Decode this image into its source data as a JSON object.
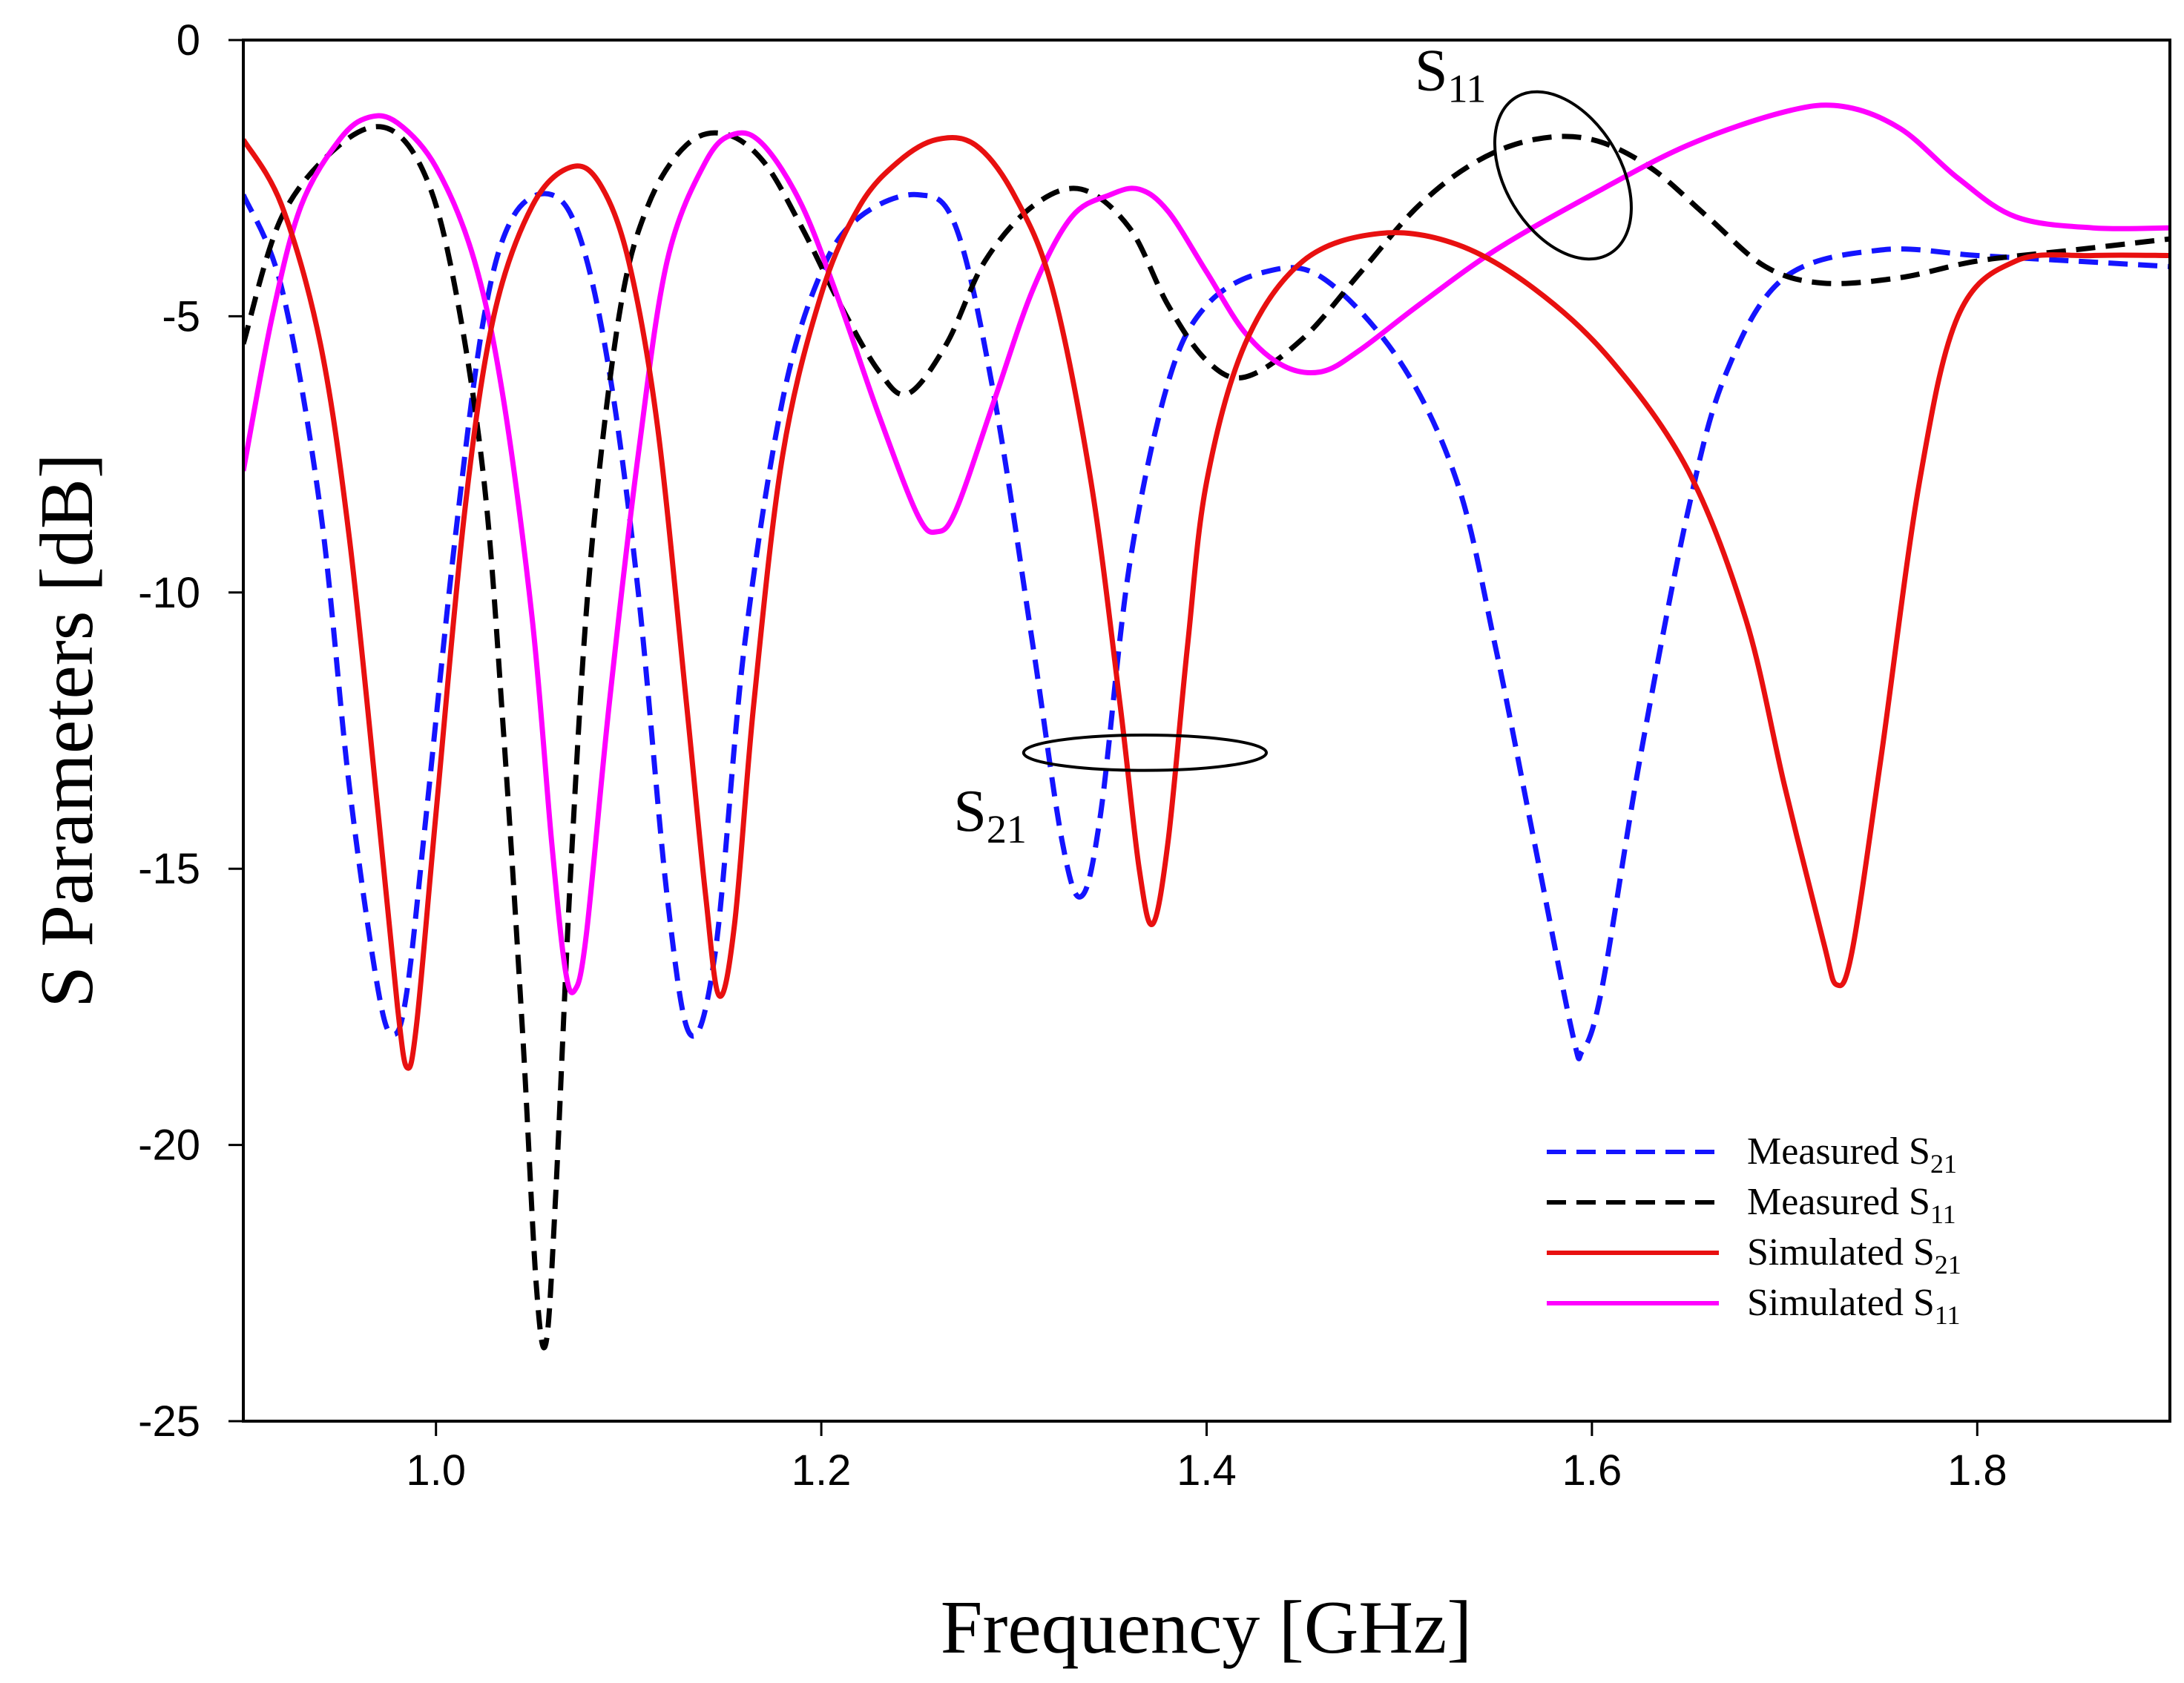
{
  "chart_data": {
    "type": "line",
    "xlabel": "Frequency [GHz]",
    "ylabel": "S Parameters [dB]",
    "xlim": [
      0.9,
      1.9
    ],
    "ylim": [
      -25,
      0
    ],
    "xticks": [
      "1.0",
      "1.2",
      "1.4",
      "1.6",
      "1.8"
    ],
    "xtick_values": [
      1.0,
      1.2,
      1.4,
      1.6,
      1.8
    ],
    "yticks": [
      "0",
      "-5",
      "-10",
      "-15",
      "-20",
      "-25"
    ],
    "ytick_values": [
      0,
      -5,
      -10,
      -15,
      -20,
      -25
    ],
    "grid": false,
    "legend_position": "bottom-right",
    "series": [
      {
        "name": "Measured S",
        "name_sub": "21",
        "color": "#1414ff",
        "style": "dashed",
        "points": [
          [
            0.9,
            -2.8
          ],
          [
            0.92,
            -4.5
          ],
          [
            0.94,
            -8.5
          ],
          [
            0.955,
            -13.5
          ],
          [
            0.97,
            -17.2
          ],
          [
            0.978,
            -18.0
          ],
          [
            0.985,
            -17.2
          ],
          [
            0.995,
            -14
          ],
          [
            1.01,
            -9
          ],
          [
            1.025,
            -5.0
          ],
          [
            1.04,
            -3.2
          ],
          [
            1.06,
            -2.8
          ],
          [
            1.075,
            -3.6
          ],
          [
            1.09,
            -6.0
          ],
          [
            1.105,
            -10
          ],
          [
            1.12,
            -15.5
          ],
          [
            1.132,
            -18.0
          ],
          [
            1.145,
            -16.5
          ],
          [
            1.16,
            -11
          ],
          [
            1.18,
            -6.5
          ],
          [
            1.2,
            -4.2
          ],
          [
            1.22,
            -3.2
          ],
          [
            1.25,
            -2.8
          ],
          [
            1.27,
            -3.4
          ],
          [
            1.29,
            -6.5
          ],
          [
            1.31,
            -11
          ],
          [
            1.325,
            -14.5
          ],
          [
            1.335,
            -15.5
          ],
          [
            1.345,
            -14
          ],
          [
            1.36,
            -9.5
          ],
          [
            1.38,
            -6.2
          ],
          [
            1.4,
            -4.8
          ],
          [
            1.43,
            -4.2
          ],
          [
            1.46,
            -4.3
          ],
          [
            1.5,
            -5.8
          ],
          [
            1.53,
            -8.0
          ],
          [
            1.55,
            -11
          ],
          [
            1.57,
            -14.5
          ],
          [
            1.59,
            -18.0
          ],
          [
            1.595,
            -18.3
          ],
          [
            1.605,
            -17.2
          ],
          [
            1.625,
            -13
          ],
          [
            1.65,
            -8.5
          ],
          [
            1.67,
            -6.0
          ],
          [
            1.7,
            -4.3
          ],
          [
            1.75,
            -3.8
          ],
          [
            1.8,
            -3.9
          ],
          [
            1.85,
            -4.0
          ],
          [
            1.9,
            -4.1
          ]
        ]
      },
      {
        "name": "Measured S",
        "name_sub": "11",
        "color": "#000000",
        "style": "dashed",
        "points": [
          [
            0.9,
            -5.5
          ],
          [
            0.92,
            -3.2
          ],
          [
            0.95,
            -1.9
          ],
          [
            0.975,
            -1.6
          ],
          [
            0.995,
            -2.5
          ],
          [
            1.01,
            -4.5
          ],
          [
            1.025,
            -8.0
          ],
          [
            1.035,
            -12.5
          ],
          [
            1.045,
            -18
          ],
          [
            1.052,
            -22.5
          ],
          [
            1.057,
            -23.6
          ],
          [
            1.062,
            -21
          ],
          [
            1.07,
            -15
          ],
          [
            1.08,
            -9.5
          ],
          [
            1.095,
            -5.0
          ],
          [
            1.11,
            -3.0
          ],
          [
            1.13,
            -1.9
          ],
          [
            1.15,
            -1.7
          ],
          [
            1.17,
            -2.2
          ],
          [
            1.19,
            -3.4
          ],
          [
            1.21,
            -4.8
          ],
          [
            1.23,
            -6.0
          ],
          [
            1.245,
            -6.4
          ],
          [
            1.265,
            -5.5
          ],
          [
            1.285,
            -4.0
          ],
          [
            1.31,
            -3.0
          ],
          [
            1.335,
            -2.7
          ],
          [
            1.36,
            -3.4
          ],
          [
            1.38,
            -4.8
          ],
          [
            1.4,
            -5.8
          ],
          [
            1.42,
            -6.1
          ],
          [
            1.45,
            -5.4
          ],
          [
            1.48,
            -4.2
          ],
          [
            1.51,
            -3.0
          ],
          [
            1.54,
            -2.2
          ],
          [
            1.57,
            -1.8
          ],
          [
            1.6,
            -1.8
          ],
          [
            1.63,
            -2.3
          ],
          [
            1.66,
            -3.2
          ],
          [
            1.69,
            -4.1
          ],
          [
            1.72,
            -4.4
          ],
          [
            1.76,
            -4.3
          ],
          [
            1.8,
            -4.0
          ],
          [
            1.85,
            -3.8
          ],
          [
            1.9,
            -3.6
          ]
        ]
      },
      {
        "name": "Simulated S",
        "name_sub": "21",
        "color": "#e81010",
        "style": "solid",
        "points": [
          [
            0.9,
            -1.8
          ],
          [
            0.92,
            -3.0
          ],
          [
            0.94,
            -5.5
          ],
          [
            0.955,
            -9.0
          ],
          [
            0.97,
            -14
          ],
          [
            0.98,
            -17.5
          ],
          [
            0.985,
            -18.6
          ],
          [
            0.99,
            -17.8
          ],
          [
            1.0,
            -14
          ],
          [
            1.015,
            -8.5
          ],
          [
            1.03,
            -5.0
          ],
          [
            1.05,
            -3.0
          ],
          [
            1.07,
            -2.3
          ],
          [
            1.085,
            -2.6
          ],
          [
            1.1,
            -4.0
          ],
          [
            1.115,
            -7.0
          ],
          [
            1.13,
            -12
          ],
          [
            1.14,
            -15.5
          ],
          [
            1.147,
            -17.3
          ],
          [
            1.155,
            -16
          ],
          [
            1.165,
            -12
          ],
          [
            1.18,
            -7.5
          ],
          [
            1.2,
            -4.6
          ],
          [
            1.22,
            -3.0
          ],
          [
            1.24,
            -2.2
          ],
          [
            1.26,
            -1.8
          ],
          [
            1.28,
            -1.9
          ],
          [
            1.3,
            -2.8
          ],
          [
            1.32,
            -4.5
          ],
          [
            1.34,
            -8.0
          ],
          [
            1.355,
            -12
          ],
          [
            1.365,
            -15
          ],
          [
            1.372,
            -16.0
          ],
          [
            1.38,
            -14.5
          ],
          [
            1.39,
            -11
          ],
          [
            1.4,
            -8.0
          ],
          [
            1.42,
            -5.5
          ],
          [
            1.45,
            -4.0
          ],
          [
            1.49,
            -3.5
          ],
          [
            1.53,
            -3.7
          ],
          [
            1.57,
            -4.5
          ],
          [
            1.61,
            -5.8
          ],
          [
            1.65,
            -7.8
          ],
          [
            1.68,
            -10.5
          ],
          [
            1.7,
            -13.5
          ],
          [
            1.72,
            -16.3
          ],
          [
            1.727,
            -17.1
          ],
          [
            1.735,
            -16.5
          ],
          [
            1.75,
            -13
          ],
          [
            1.77,
            -8.0
          ],
          [
            1.79,
            -5.0
          ],
          [
            1.82,
            -4.0
          ],
          [
            1.86,
            -3.9
          ],
          [
            1.9,
            -3.9
          ]
        ]
      },
      {
        "name": "Simulated S",
        "name_sub": "11",
        "color": "#ff00ff",
        "style": "solid",
        "points": [
          [
            0.9,
            -7.8
          ],
          [
            0.915,
            -5.0
          ],
          [
            0.93,
            -3.0
          ],
          [
            0.95,
            -1.8
          ],
          [
            0.965,
            -1.4
          ],
          [
            0.98,
            -1.5
          ],
          [
            1.0,
            -2.3
          ],
          [
            1.02,
            -4.0
          ],
          [
            1.035,
            -6.5
          ],
          [
            1.05,
            -10.5
          ],
          [
            1.06,
            -14.5
          ],
          [
            1.067,
            -16.8
          ],
          [
            1.072,
            -17.2
          ],
          [
            1.078,
            -16.2
          ],
          [
            1.09,
            -12
          ],
          [
            1.105,
            -7.5
          ],
          [
            1.12,
            -4.0
          ],
          [
            1.14,
            -2.2
          ],
          [
            1.155,
            -1.7
          ],
          [
            1.17,
            -1.9
          ],
          [
            1.19,
            -3.0
          ],
          [
            1.21,
            -4.8
          ],
          [
            1.23,
            -6.8
          ],
          [
            1.25,
            -8.6
          ],
          [
            1.26,
            -8.9
          ],
          [
            1.27,
            -8.5
          ],
          [
            1.29,
            -6.5
          ],
          [
            1.31,
            -4.5
          ],
          [
            1.33,
            -3.2
          ],
          [
            1.35,
            -2.8
          ],
          [
            1.365,
            -2.7
          ],
          [
            1.38,
            -3.1
          ],
          [
            1.4,
            -4.2
          ],
          [
            1.42,
            -5.3
          ],
          [
            1.44,
            -5.9
          ],
          [
            1.46,
            -6.0
          ],
          [
            1.48,
            -5.6
          ],
          [
            1.51,
            -4.8
          ],
          [
            1.55,
            -3.8
          ],
          [
            1.6,
            -2.8
          ],
          [
            1.65,
            -1.9
          ],
          [
            1.7,
            -1.3
          ],
          [
            1.73,
            -1.2
          ],
          [
            1.76,
            -1.6
          ],
          [
            1.79,
            -2.5
          ],
          [
            1.82,
            -3.2
          ],
          [
            1.86,
            -3.4
          ],
          [
            1.9,
            -3.4
          ]
        ]
      }
    ],
    "annotations": [
      {
        "label": "S",
        "sub": "11",
        "cx": 1.585,
        "cy": -2.45,
        "rx": 0.03,
        "ry": 1.65,
        "rotation": -31
      },
      {
        "label": "S",
        "sub": "21",
        "cx": 1.368,
        "cy": -12.9,
        "rx": 0.063,
        "ry": 0.32,
        "rotation": 0
      }
    ]
  }
}
